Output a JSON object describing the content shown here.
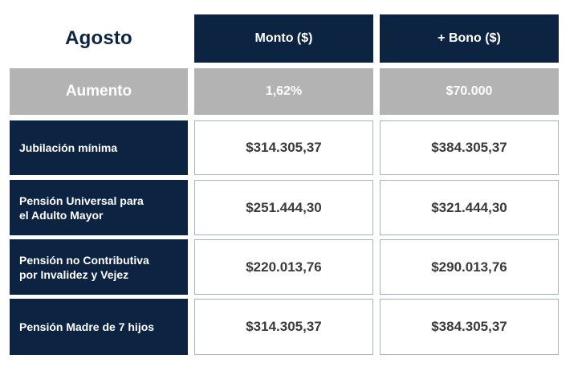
{
  "header": {
    "title": "Agosto",
    "col1": "Monto ($)",
    "col2": "+ Bono ($)"
  },
  "aumento": {
    "label": "Aumento",
    "col1": "1,62%",
    "col2": "$70.000"
  },
  "rows": [
    {
      "label_line1": "Jubilación mínima",
      "label_line2": "",
      "monto": "$314.305,37",
      "bono": "$384.305,37"
    },
    {
      "label_line1": "Pensión Universal para",
      "label_line2": "el Adulto Mayor",
      "monto": "$251.444,30",
      "bono": "$321.444,30"
    },
    {
      "label_line1": "Pensión no Contributiva",
      "label_line2": "por Invalidez y Vejez",
      "monto": "$220.013,76",
      "bono": "$290.013,76"
    },
    {
      "label_line1": "Pensión Madre de 7 hijos",
      "label_line2": "",
      "monto": "$314.305,37",
      "bono": "$384.305,37"
    }
  ],
  "colors": {
    "navy": "#0c2442",
    "gray": "#b3b3b3",
    "border": "#a9b3be",
    "value_text": "#3a3a3a"
  }
}
